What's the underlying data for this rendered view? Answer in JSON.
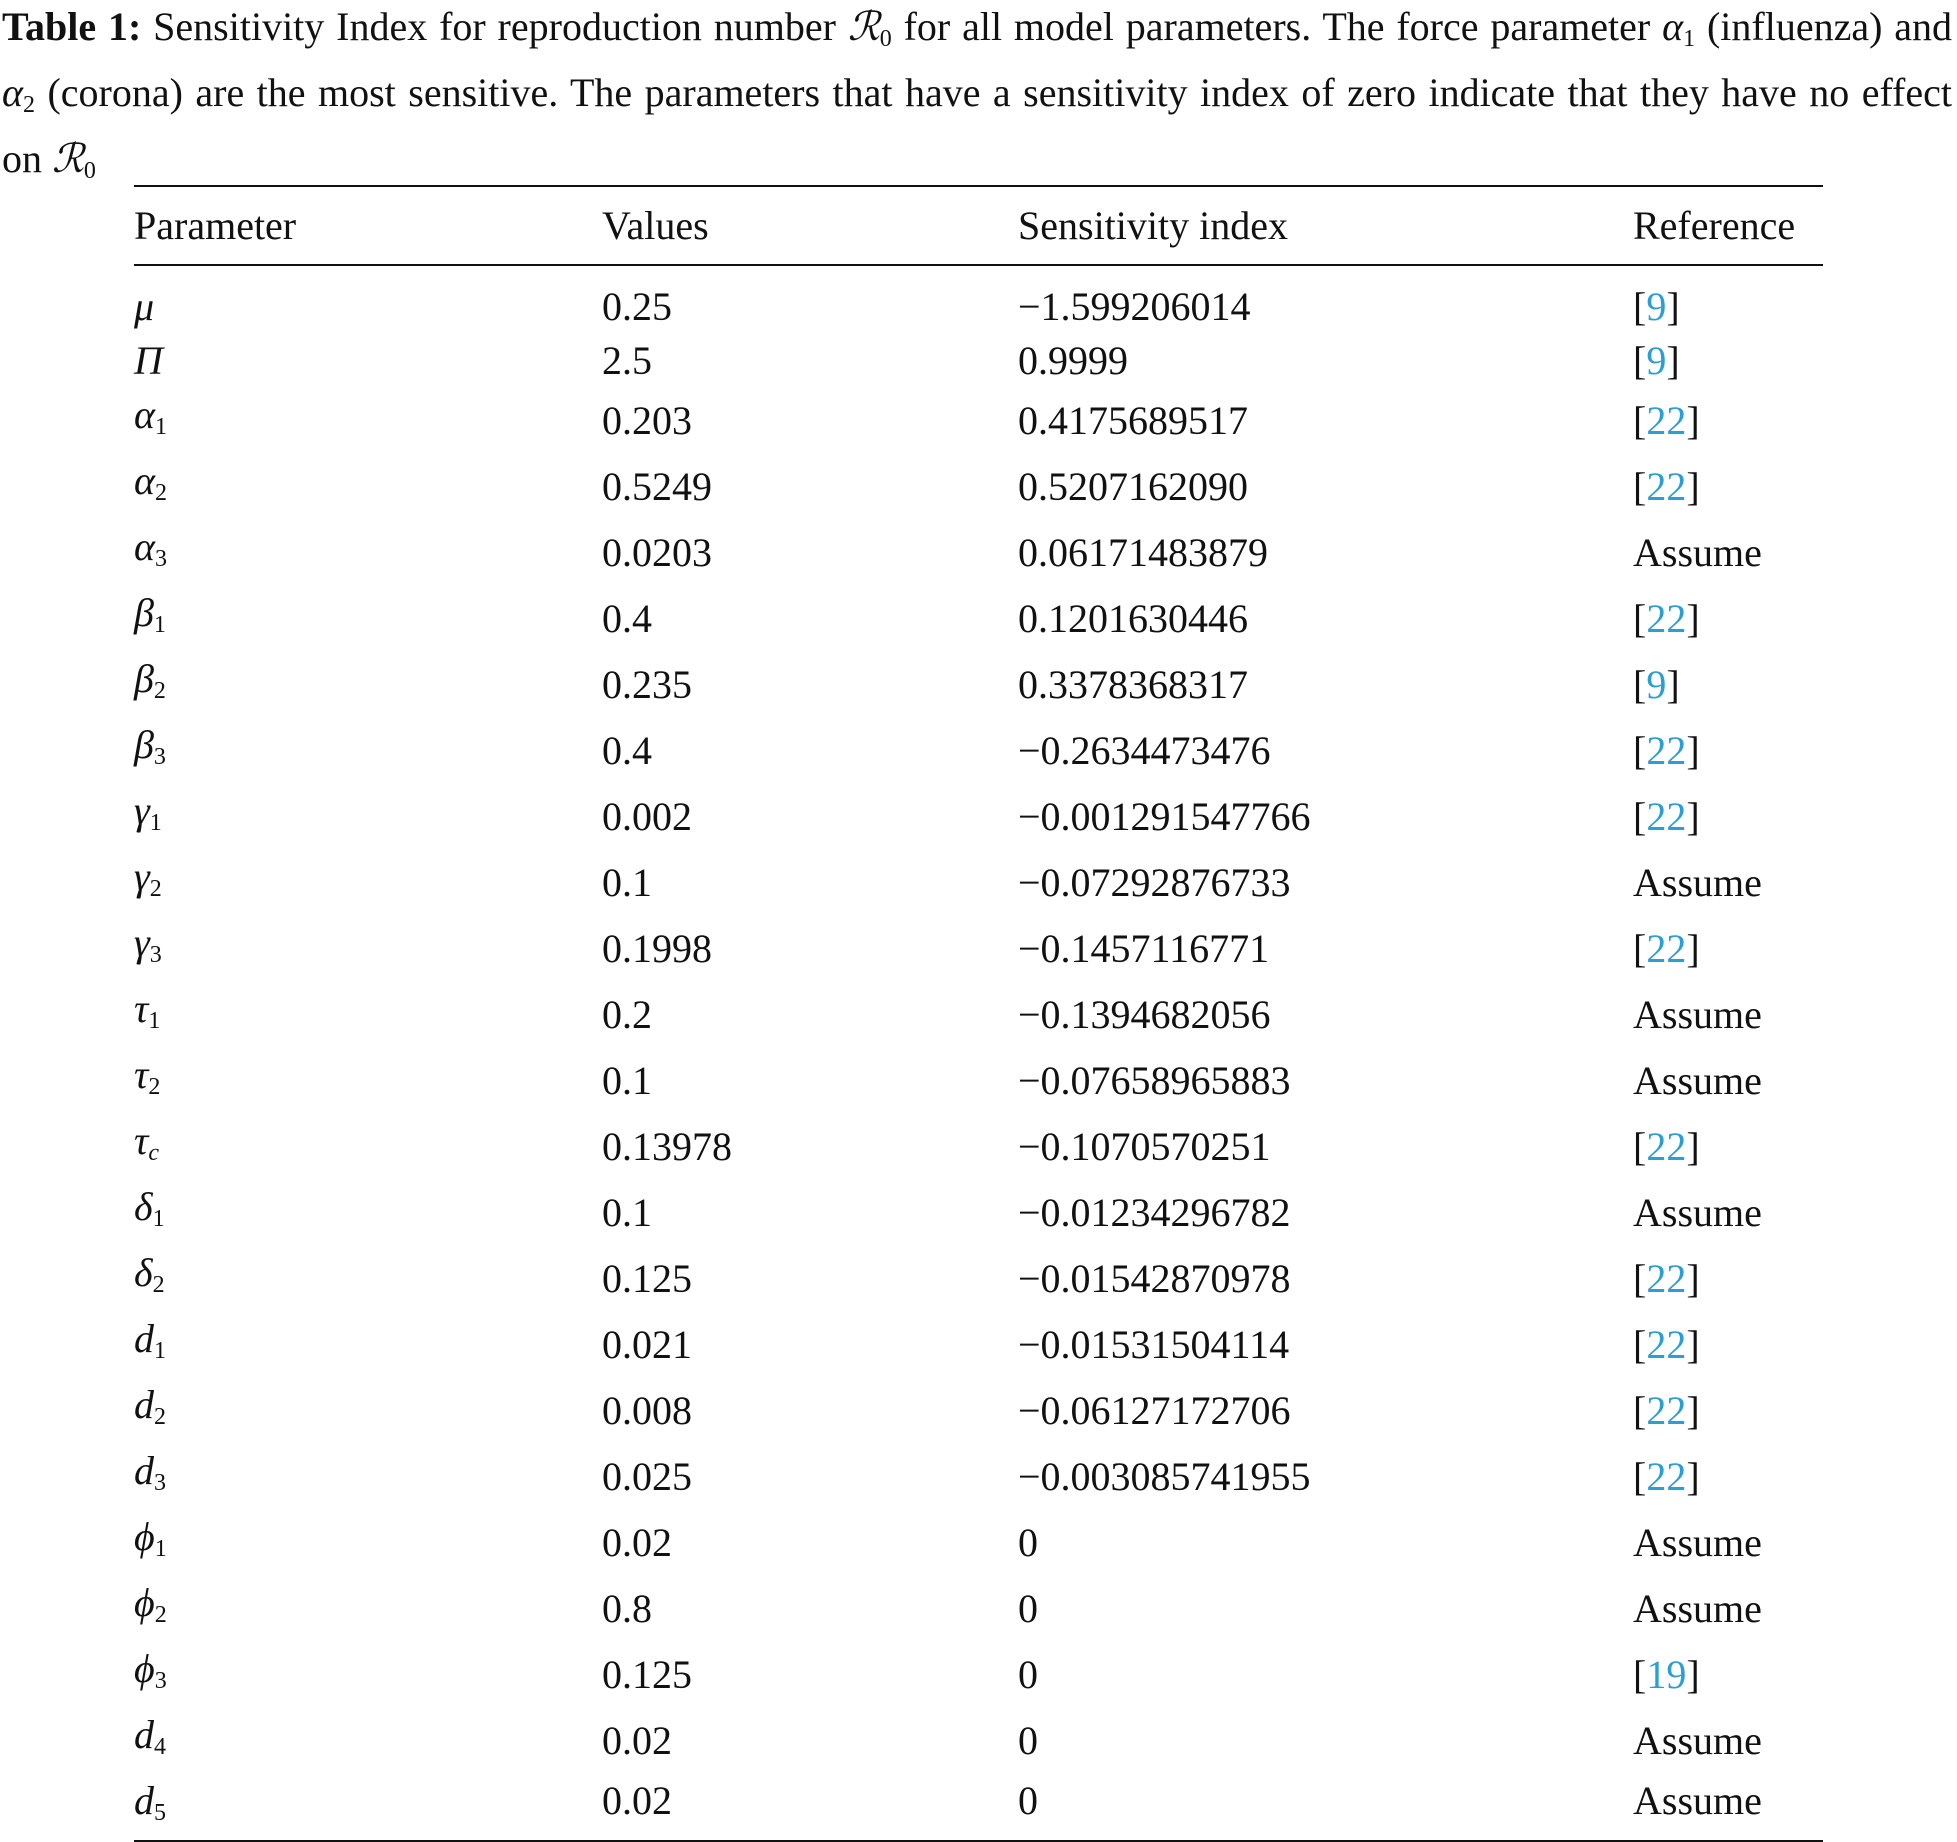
{
  "caption": {
    "label": "Table 1:",
    "segments": [
      {
        "text": "Sensitivity Index for reproduction number "
      },
      {
        "sym": "ℛ",
        "sub": "0"
      },
      {
        "text": " for all model parameters. The force parameter "
      },
      {
        "sym": "α",
        "sub": "1"
      },
      {
        "text": " (influenza) and "
      },
      {
        "sym": "α",
        "sub": "2"
      },
      {
        "text": " (corona) are the most sensitive. The parameters that have a sensitivity index of zero indicate that they have no effect on "
      },
      {
        "sym": "ℛ",
        "sub": "0"
      }
    ]
  },
  "table": {
    "header": [
      "Parameter",
      "Values",
      "Sensitivity index",
      "Reference"
    ],
    "rows": [
      [
        {
          "sym": "μ"
        },
        "0.25",
        "−1.599206014",
        "[9]"
      ],
      [
        {
          "sym": "Π"
        },
        "2.5",
        "0.9999",
        "[9]"
      ],
      [
        {
          "sym": "α",
          "sub": "1"
        },
        "0.203",
        "0.4175689517",
        "[22]"
      ],
      [
        {
          "sym": "α",
          "sub": "2"
        },
        "0.5249",
        "0.5207162090",
        "[22]"
      ],
      [
        {
          "sym": "α",
          "sub": "3"
        },
        "0.0203",
        "0.06171483879",
        "Assume"
      ],
      [
        {
          "sym": "β",
          "sub": "1"
        },
        "0.4",
        "0.1201630446",
        "[22]"
      ],
      [
        {
          "sym": "β",
          "sub": "2"
        },
        "0.235",
        "0.3378368317",
        "[9]"
      ],
      [
        {
          "sym": "β",
          "sub": "3"
        },
        "0.4",
        "−0.2634473476",
        "[22]"
      ],
      [
        {
          "sym": "γ",
          "sub": "1"
        },
        "0.002",
        "−0.001291547766",
        "[22]"
      ],
      [
        {
          "sym": "γ",
          "sub": "2"
        },
        "0.1",
        "−0.07292876733",
        "Assume"
      ],
      [
        {
          "sym": "γ",
          "sub": "3"
        },
        "0.1998",
        "−0.1457116771",
        "[22]"
      ],
      [
        {
          "sym": "τ",
          "sub": "1"
        },
        "0.2",
        "−0.1394682056",
        "Assume"
      ],
      [
        {
          "sym": "τ",
          "sub": "2"
        },
        "0.1",
        "−0.07658965883",
        "Assume"
      ],
      [
        {
          "sym": "τ",
          "sub": "c"
        },
        "0.13978",
        "−0.1070570251",
        "[22]"
      ],
      [
        {
          "sym": "δ",
          "sub": "1"
        },
        "0.1",
        "−0.01234296782",
        "Assume"
      ],
      [
        {
          "sym": "δ",
          "sub": "2"
        },
        "0.125",
        "−0.01542870978",
        "[22]"
      ],
      [
        {
          "sym": "d",
          "sub": "1"
        },
        "0.021",
        "−0.01531504114",
        "[22]"
      ],
      [
        {
          "sym": "d",
          "sub": "2"
        },
        "0.008",
        "−0.06127172706",
        "[22]"
      ],
      [
        {
          "sym": "d",
          "sub": "3"
        },
        "0.025",
        "−0.003085741955",
        "[22]"
      ],
      [
        {
          "sym": "ϕ",
          "sub": "1"
        },
        "0.02",
        "0",
        "Assume"
      ],
      [
        {
          "sym": "ϕ",
          "sub": "2"
        },
        "0.8",
        "0",
        "Assume"
      ],
      [
        {
          "sym": "ϕ",
          "sub": "3"
        },
        "0.125",
        "0",
        "[19]"
      ],
      [
        {
          "sym": "d",
          "sub": "4"
        },
        "0.02",
        "0",
        "Assume"
      ],
      [
        {
          "sym": "d",
          "sub": "5"
        },
        "0.02",
        "0",
        "Assume"
      ]
    ]
  }
}
